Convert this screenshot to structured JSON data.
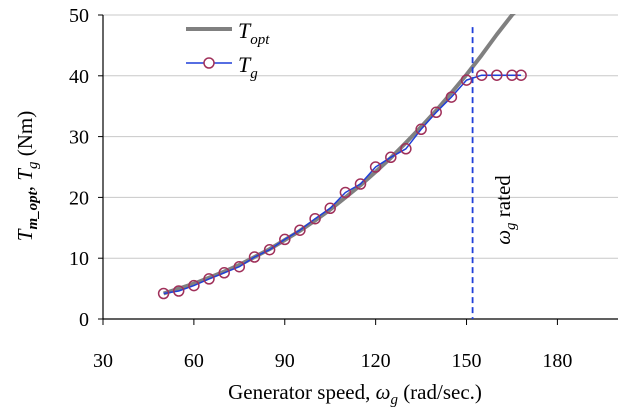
{
  "chart_data": {
    "type": "line",
    "xlim": [
      30,
      200
    ],
    "ylim": [
      0,
      50
    ],
    "xticks": [
      "30",
      "60",
      "90",
      "120",
      "150",
      "180"
    ],
    "yticks": [
      "0",
      "10",
      "20",
      "30",
      "40",
      "50"
    ],
    "xlabel": {
      "main": "Generator speed, ",
      "omega": "ω",
      "sub": "g",
      "units": " (rad/sec.)"
    },
    "ylabel": {
      "t1": "T",
      "s1": "m_opt",
      "comma": ", ",
      "t2": "T",
      "s2": "g",
      "units": " (Nm)"
    },
    "grid": {
      "horizontal": true,
      "vertical": false
    },
    "legend_position": "top-center",
    "series": [
      {
        "name": {
          "base": "T",
          "sub": "opt"
        },
        "style": "thick-line",
        "color": "#808080",
        "x": [
          50,
          55,
          60,
          65,
          70,
          75,
          80,
          85,
          90,
          95,
          100,
          105,
          110,
          115,
          120,
          125,
          130,
          135,
          140,
          145,
          150,
          155,
          160,
          165,
          170
        ],
        "y": [
          4.2,
          5.0,
          5.8,
          6.8,
          7.8,
          8.9,
          10.2,
          11.5,
          13.0,
          14.5,
          16.2,
          18.0,
          20.0,
          22.0,
          24.2,
          26.5,
          29.0,
          31.6,
          34.3,
          37.2,
          40.2,
          43.4,
          46.8,
          50.0,
          52.5
        ]
      },
      {
        "name": {
          "base": "T",
          "sub": "g"
        },
        "style": "line-circles",
        "color": "#1f3fd9",
        "marker_color": "#a0305a",
        "x": [
          50,
          55,
          60,
          65,
          70,
          75,
          80,
          85,
          90,
          95,
          100,
          105,
          110,
          115,
          120,
          125,
          130,
          135,
          140,
          145,
          150,
          155,
          160,
          165,
          168
        ],
        "y": [
          4.2,
          4.6,
          5.5,
          6.6,
          7.6,
          8.6,
          10.2,
          11.4,
          13.1,
          14.6,
          16.5,
          18.2,
          20.8,
          22.2,
          25.0,
          26.6,
          28.0,
          31.2,
          34.0,
          36.5,
          39.3,
          40.1,
          40.1,
          40.1,
          40.1
        ]
      }
    ],
    "vline": {
      "x": 152,
      "color": "#1f3fd9",
      "style": "dashed",
      "label_omega": "ω",
      "label_sub": "g",
      "label_text": " rated"
    }
  }
}
